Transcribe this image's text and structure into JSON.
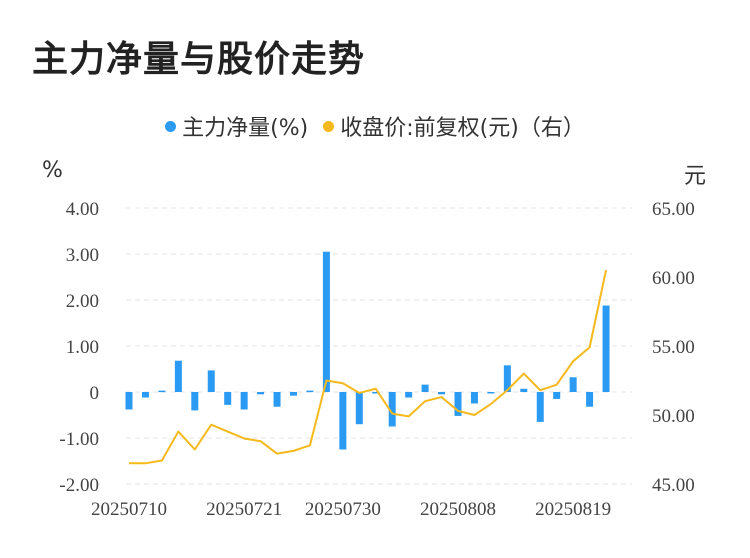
{
  "title": "主力净量与股价走势",
  "legend": [
    {
      "label": "主力净量(%)",
      "color": "#2b9af3"
    },
    {
      "label": "收盘价:前复权(元)（右）",
      "color": "#f5b91c"
    }
  ],
  "chart_data": {
    "type": "bar+line",
    "title": "主力净量与股价走势",
    "y_left": {
      "unit": "%",
      "min": -2,
      "max": 4,
      "ticks": [
        "4.00",
        "3.00",
        "2.00",
        "1.00",
        "0",
        "-1.00",
        "-2.00"
      ]
    },
    "y_right": {
      "unit": "元",
      "min": 45,
      "max": 65,
      "ticks": [
        "65.00",
        "60.00",
        "55.00",
        "50.00",
        "45.00"
      ]
    },
    "x_tick_labels": [
      "20250710",
      "20250721",
      "20250730",
      "20250808",
      "20250819"
    ],
    "x_tick_indices": [
      0,
      7,
      13,
      20,
      27
    ],
    "series": [
      {
        "name": "主力净量(%)",
        "type": "bar",
        "color": "#2b9af3",
        "values": [
          -0.38,
          -0.12,
          0.03,
          0.68,
          -0.4,
          0.47,
          -0.28,
          -0.38,
          -0.05,
          -0.32,
          -0.08,
          0.03,
          3.05,
          -1.25,
          -0.7,
          -0.02,
          -0.75,
          -0.12,
          0.16,
          -0.05,
          -0.52,
          -0.25,
          -0.02,
          0.58,
          0.07,
          -0.65,
          -0.15,
          0.32,
          -0.32,
          1.88
        ]
      },
      {
        "name": "收盘价:前复权(元)（右）",
        "type": "line",
        "color": "#f5b91c",
        "values": [
          46.5,
          46.5,
          46.7,
          48.8,
          47.5,
          49.3,
          48.8,
          48.3,
          48.1,
          47.2,
          47.4,
          47.8,
          52.5,
          52.3,
          51.6,
          51.9,
          50.1,
          49.9,
          51.0,
          51.3,
          50.3,
          50.0,
          50.8,
          51.8,
          53.0,
          51.8,
          52.2,
          53.9,
          54.9,
          60.5
        ]
      }
    ],
    "grid": "horizontal dashed",
    "legend_position": "top-center"
  }
}
